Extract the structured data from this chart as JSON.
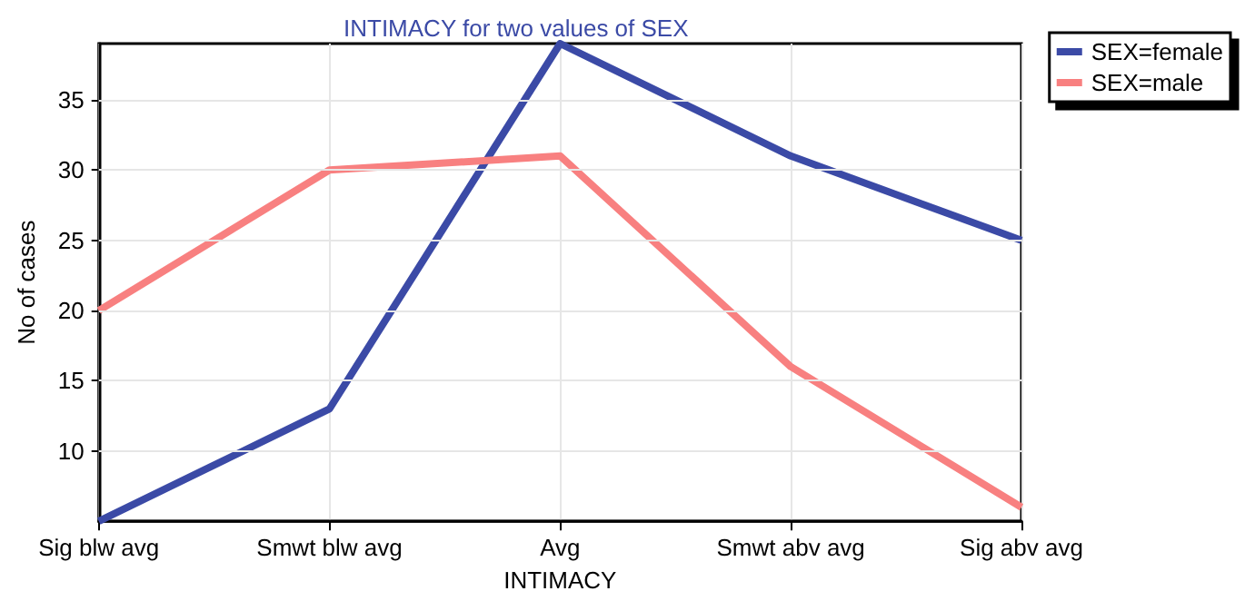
{
  "chart_data": {
    "type": "line",
    "title": "INTIMACY for two values of SEX",
    "xlabel": "INTIMACY",
    "ylabel": "No of cases",
    "categories": [
      "Sig blw avg",
      "Smwt blw avg",
      "Avg",
      "Smwt abv avg",
      "Sig abv avg"
    ],
    "series": [
      {
        "name": "SEX=female",
        "color": "#3b4aa6",
        "values": [
          5,
          13,
          39,
          31,
          25
        ]
      },
      {
        "name": "SEX=male",
        "color": "#f88080",
        "values": [
          20,
          30,
          31,
          16,
          6
        ]
      }
    ],
    "ylim": [
      5,
      39
    ],
    "yticks": [
      10,
      15,
      20,
      25,
      30,
      35
    ],
    "grid": true,
    "legend": "top right",
    "marker": "none",
    "line_style": "solid"
  }
}
